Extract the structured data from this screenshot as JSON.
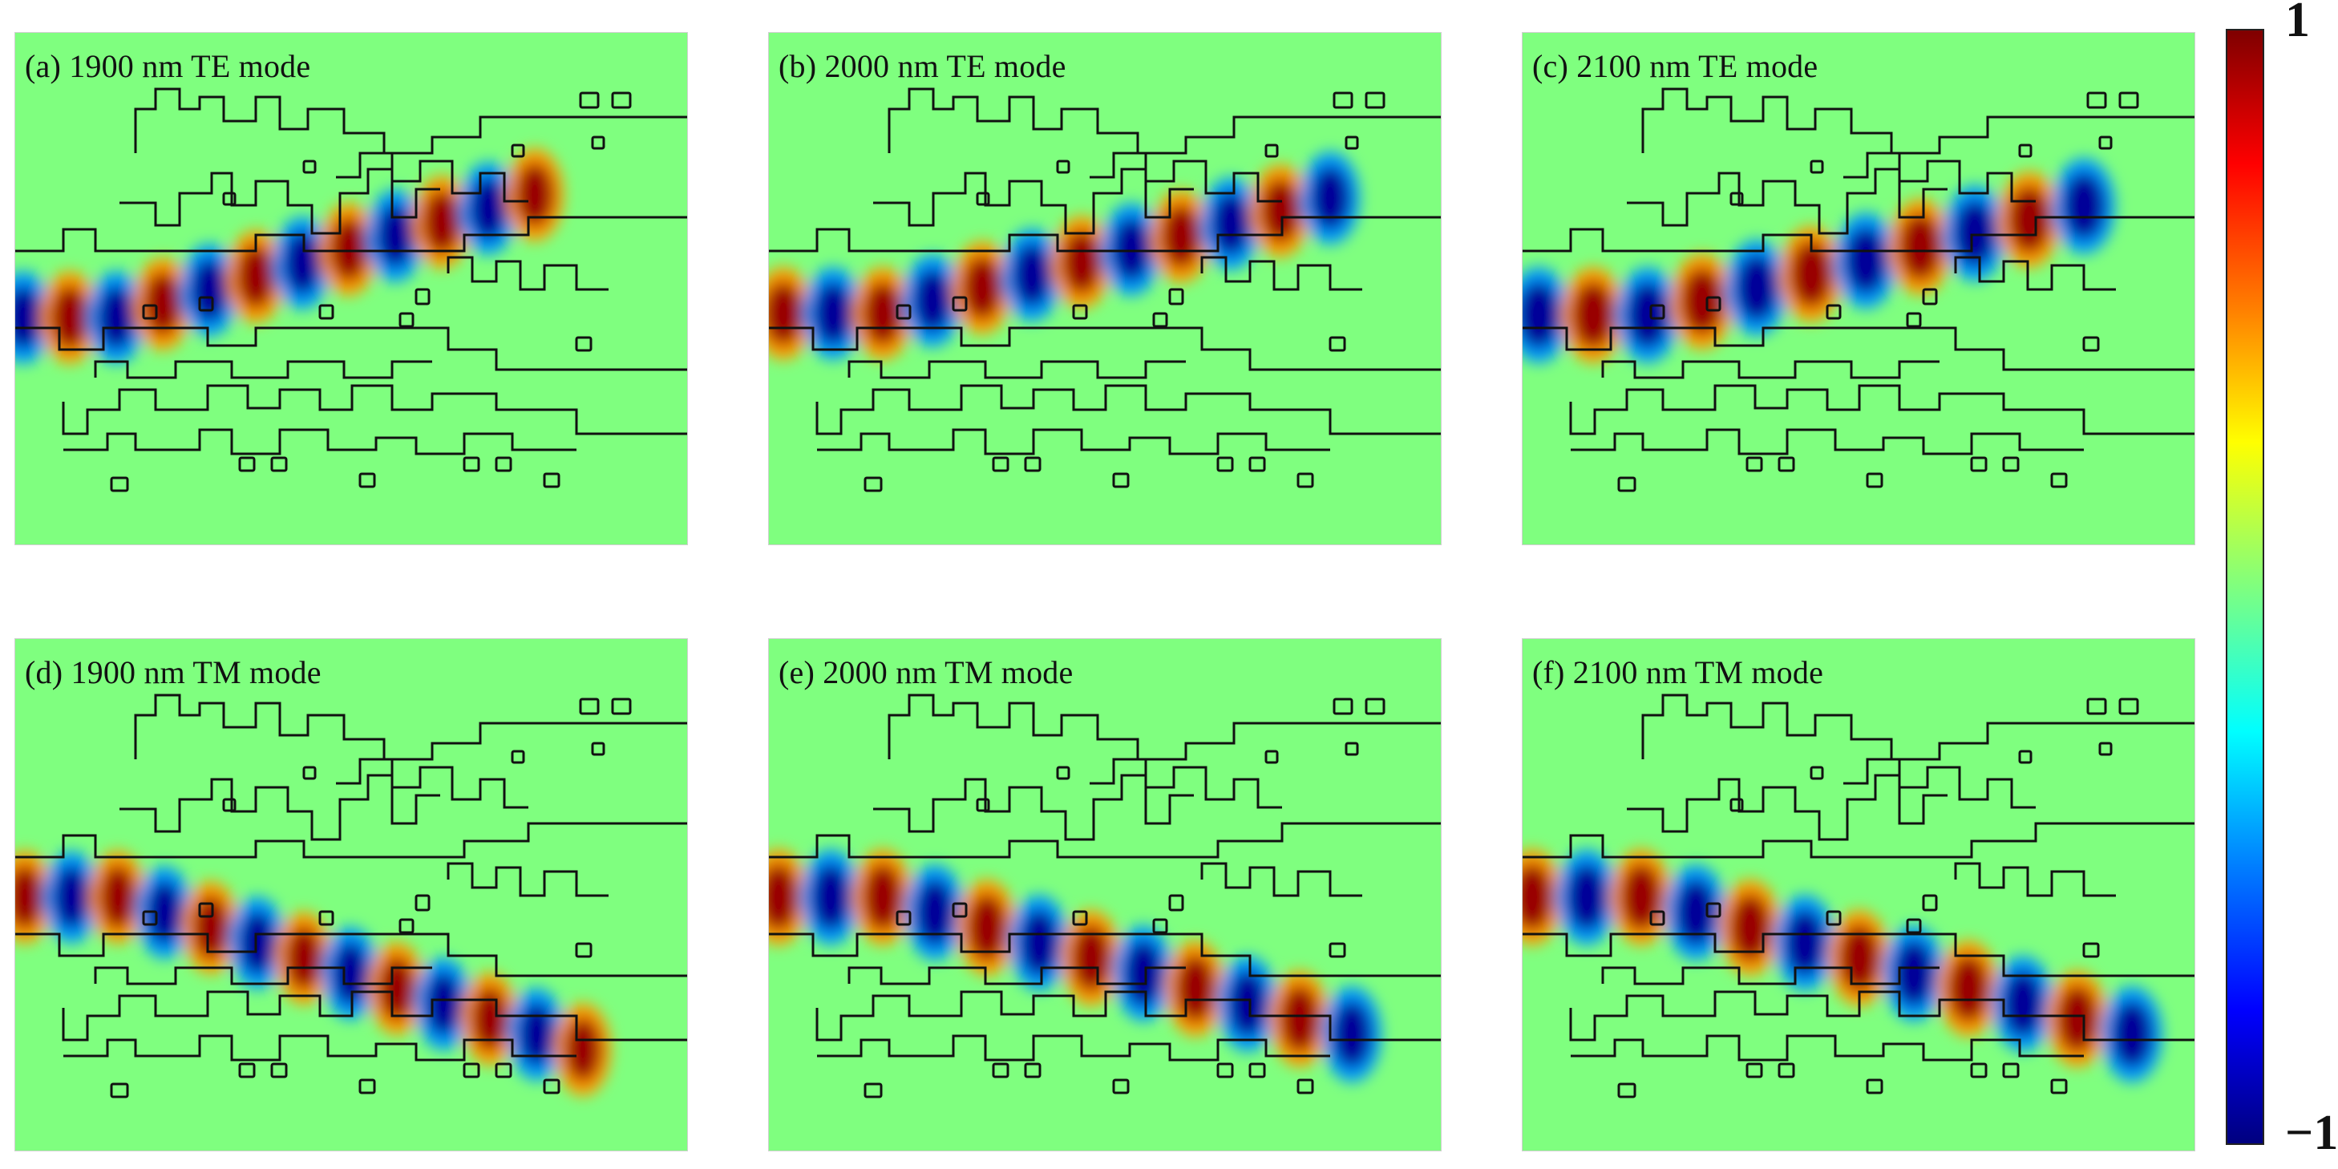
{
  "figure": {
    "panels": [
      {
        "id": "a",
        "label": "(a) 1900 nm TE mode",
        "wavelength_nm": 1900,
        "mode": "TE",
        "output_port": "upper",
        "lobes": [
          -1,
          1,
          -1,
          1,
          -1,
          1,
          -1,
          1,
          -1,
          1,
          -1,
          1
        ]
      },
      {
        "id": "b",
        "label": "(b) 2000 nm TE mode",
        "wavelength_nm": 2000,
        "mode": "TE",
        "output_port": "upper",
        "lobes": [
          1,
          -1,
          1,
          -1,
          1,
          -1,
          1,
          -1,
          1,
          -1,
          1,
          -1
        ]
      },
      {
        "id": "c",
        "label": "(c) 2100 nm TE mode",
        "wavelength_nm": 2100,
        "mode": "TE",
        "output_port": "upper",
        "lobes": [
          -1,
          1,
          -1,
          1,
          -1,
          1,
          -1,
          1,
          -1,
          1,
          -1
        ]
      },
      {
        "id": "d",
        "label": "(d) 1900 nm TM mode",
        "wavelength_nm": 1900,
        "mode": "TM",
        "output_port": "lower",
        "lobes": [
          1,
          -1,
          1,
          -1,
          1,
          -1,
          1,
          -1,
          1,
          -1,
          1,
          -1,
          1
        ]
      },
      {
        "id": "e",
        "label": "(e) 2000 nm TM mode",
        "wavelength_nm": 2000,
        "mode": "TM",
        "output_port": "lower",
        "lobes": [
          1,
          -1,
          1,
          -1,
          1,
          -1,
          1,
          -1,
          1,
          -1,
          1,
          -1
        ]
      },
      {
        "id": "f",
        "label": "(f) 2100 nm TM mode",
        "wavelength_nm": 2100,
        "mode": "TM",
        "output_port": "lower",
        "lobes": [
          1,
          -1,
          1,
          -1,
          1,
          -1,
          1,
          -1,
          1,
          -1,
          1,
          -1
        ]
      }
    ],
    "colorbar": {
      "max_label": "1",
      "min_label": "−1",
      "colormap": "jet",
      "stops": [
        "#00007f",
        "#0000ff",
        "#007fff",
        "#00ffff",
        "#7fff7f",
        "#ffff00",
        "#ff7f00",
        "#ff0000",
        "#7f0000"
      ],
      "background_color": "#7fff7f"
    }
  }
}
